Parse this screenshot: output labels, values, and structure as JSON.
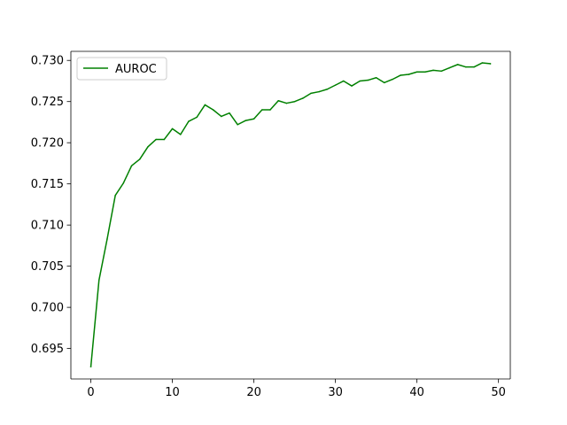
{
  "chart_data": {
    "type": "line",
    "title": "",
    "xlabel": "",
    "ylabel": "",
    "xlim": [
      -2.45,
      51.45
    ],
    "ylim": [
      0.6913,
      0.7311
    ],
    "x_ticks": [
      0,
      10,
      20,
      30,
      40,
      50
    ],
    "x_tick_labels": [
      "0",
      "10",
      "20",
      "30",
      "40",
      "50"
    ],
    "y_ticks": [
      0.695,
      0.7,
      0.705,
      0.71,
      0.715,
      0.72,
      0.725,
      0.73
    ],
    "y_tick_labels": [
      "0.695",
      "0.700",
      "0.705",
      "0.710",
      "0.715",
      "0.720",
      "0.725",
      "0.730"
    ],
    "grid": false,
    "legend_position": "upper left",
    "series": [
      {
        "name": "AUROC",
        "color": "#008000",
        "x": [
          0,
          1,
          2,
          3,
          4,
          5,
          6,
          7,
          8,
          9,
          10,
          11,
          12,
          13,
          14,
          15,
          16,
          17,
          18,
          19,
          20,
          21,
          22,
          23,
          24,
          25,
          26,
          27,
          28,
          29,
          30,
          31,
          32,
          33,
          34,
          35,
          36,
          37,
          38,
          39,
          40,
          41,
          42,
          43,
          44,
          45,
          46,
          47,
          48,
          49
        ],
        "values": [
          0.6928,
          0.7033,
          0.7083,
          0.7136,
          0.7151,
          0.7172,
          0.718,
          0.7195,
          0.7204,
          0.7204,
          0.7217,
          0.721,
          0.7226,
          0.7231,
          0.7246,
          0.724,
          0.7232,
          0.7236,
          0.7222,
          0.7227,
          0.7229,
          0.724,
          0.724,
          0.7251,
          0.7248,
          0.725,
          0.7254,
          0.726,
          0.7262,
          0.7265,
          0.727,
          0.7275,
          0.7269,
          0.7275,
          0.7276,
          0.7279,
          0.7273,
          0.7277,
          0.7282,
          0.7283,
          0.7286,
          0.7286,
          0.7288,
          0.7287,
          0.7291,
          0.7295,
          0.7292,
          0.7292,
          0.7297,
          0.7296
        ]
      }
    ]
  }
}
